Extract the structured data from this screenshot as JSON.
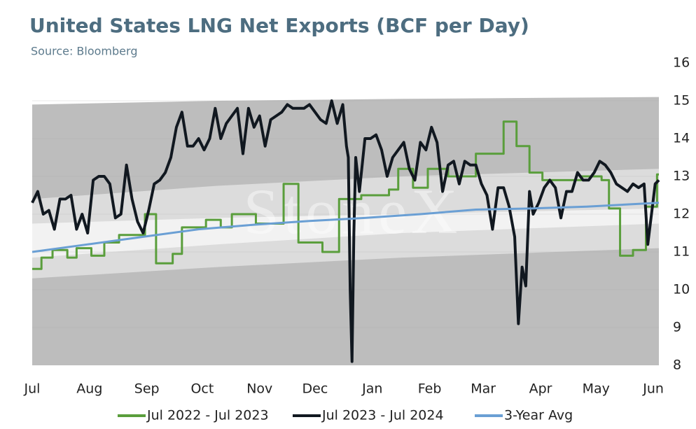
{
  "chart_data": {
    "type": "line",
    "title": "United States LNG Net Exports (BCF per Day)",
    "subtitle": "Source: Bloomberg",
    "watermark": "StoneX",
    "xlim": [
      0,
      339
    ],
    "xticks": [
      {
        "value": 0,
        "label": "Jul"
      },
      {
        "value": 31,
        "label": "Aug"
      },
      {
        "value": 62,
        "label": "Sep"
      },
      {
        "value": 92,
        "label": "Oct"
      },
      {
        "value": 123,
        "label": "Nov"
      },
      {
        "value": 153,
        "label": "Dec"
      },
      {
        "value": 184,
        "label": "Jan"
      },
      {
        "value": 215,
        "label": "Feb"
      },
      {
        "value": 244,
        "label": "Mar"
      },
      {
        "value": 275,
        "label": "Apr"
      },
      {
        "value": 305,
        "label": "May"
      },
      {
        "value": 336,
        "label": "Jun"
      }
    ],
    "ylim": [
      8,
      16
    ],
    "yticks": [
      8,
      9,
      10,
      11,
      12,
      13,
      14,
      15,
      16
    ],
    "y_axis_side": "right",
    "grid": true,
    "legend": "bottom",
    "bands": [
      {
        "color": "#bdbdbd",
        "x": [
          0,
          100,
          200,
          339
        ],
        "lower": [
          8,
          8,
          8,
          8
        ],
        "upper": [
          14.9,
          15.0,
          15.05,
          15.1
        ]
      },
      {
        "color": "#dcdcdc",
        "x": [
          0,
          100,
          200,
          339
        ],
        "lower": [
          10.3,
          10.6,
          10.85,
          11.1
        ],
        "upper": [
          12.4,
          12.75,
          13.0,
          13.2
        ]
      },
      {
        "color": "#f2f2f2",
        "x": [
          0,
          100,
          200,
          339
        ],
        "lower": [
          10.85,
          11.2,
          11.5,
          11.75
        ],
        "upper": [
          11.75,
          11.9,
          12.0,
          12.15
        ]
      }
    ],
    "series": [
      {
        "name": "Jul 2022 - Jul 2023",
        "color": "#5a9e3c",
        "x": [
          0,
          5,
          5,
          11,
          11,
          19,
          19,
          24,
          24,
          32,
          32,
          39,
          39,
          47,
          47,
          61,
          61,
          67,
          67,
          76,
          76,
          81,
          81,
          94,
          94,
          102,
          102,
          108,
          108,
          121,
          121,
          136,
          136,
          144,
          144,
          157,
          157,
          166,
          166,
          178,
          178,
          193,
          193,
          198,
          198,
          206,
          206,
          214,
          214,
          225,
          225,
          240,
          240,
          255,
          255,
          262,
          262,
          269,
          269,
          276,
          276,
          297,
          297,
          308,
          308,
          312,
          312,
          318,
          318,
          325,
          325,
          332,
          332,
          338,
          338,
          339
        ],
        "values": [
          10.55,
          10.55,
          10.85,
          10.85,
          11.05,
          11.05,
          10.85,
          10.85,
          11.1,
          11.1,
          10.9,
          10.9,
          11.25,
          11.25,
          11.45,
          11.45,
          12.0,
          12.0,
          10.7,
          10.7,
          10.95,
          10.95,
          11.65,
          11.65,
          11.85,
          11.85,
          11.65,
          11.65,
          12.0,
          12.0,
          11.75,
          11.75,
          12.8,
          12.8,
          11.25,
          11.25,
          11.0,
          11.0,
          12.4,
          12.4,
          12.5,
          12.5,
          12.65,
          12.65,
          13.2,
          13.2,
          12.7,
          12.7,
          13.2,
          13.2,
          13.0,
          13.0,
          13.6,
          13.6,
          14.45,
          14.45,
          13.8,
          13.8,
          13.1,
          13.1,
          12.9,
          12.9,
          13.0,
          13.0,
          12.9,
          12.9,
          12.15,
          12.15,
          10.9,
          10.9,
          11.05,
          11.05,
          12.2,
          12.2,
          13.05,
          13.05
        ]
      },
      {
        "name": "Jul 2023 - Jul 2024",
        "color": "#111820",
        "x": [
          0,
          3,
          6,
          9,
          12,
          15,
          18,
          21,
          24,
          27,
          30,
          33,
          36,
          39,
          42,
          45,
          48,
          51,
          54,
          57,
          60,
          63,
          66,
          69,
          72,
          75,
          78,
          81,
          84,
          87,
          90,
          93,
          96,
          99,
          102,
          105,
          108,
          111,
          114,
          117,
          120,
          123,
          126,
          129,
          132,
          135,
          138,
          141,
          144,
          147,
          150,
          153,
          156,
          159,
          162,
          165,
          168,
          170,
          171,
          172,
          173,
          174,
          175,
          177,
          180,
          183,
          186,
          189,
          192,
          195,
          198,
          201,
          204,
          207,
          210,
          213,
          216,
          219,
          222,
          225,
          228,
          231,
          234,
          237,
          240,
          243,
          246,
          249,
          252,
          255,
          258,
          261,
          263,
          265,
          267,
          269,
          271,
          274,
          277,
          280,
          283,
          286,
          289,
          292,
          295,
          298,
          301,
          304,
          307,
          310,
          313,
          316,
          319,
          322,
          325,
          328,
          331,
          333,
          335,
          337,
          339
        ],
        "values": [
          12.3,
          12.6,
          12.0,
          12.1,
          11.6,
          12.4,
          12.4,
          12.5,
          11.6,
          12.0,
          11.5,
          12.9,
          13.0,
          13.0,
          12.8,
          11.9,
          12.0,
          13.3,
          12.4,
          11.8,
          11.5,
          12.1,
          12.8,
          12.9,
          13.1,
          13.5,
          14.3,
          14.7,
          13.8,
          13.8,
          14.0,
          13.7,
          14.0,
          14.8,
          14.0,
          14.4,
          14.6,
          14.8,
          13.6,
          14.8,
          14.3,
          14.6,
          13.8,
          14.5,
          14.6,
          14.7,
          14.9,
          14.8,
          14.8,
          14.8,
          14.9,
          14.7,
          14.5,
          14.4,
          15.0,
          14.4,
          14.9,
          13.8,
          13.5,
          10.0,
          8.1,
          11.5,
          13.5,
          12.6,
          14.0,
          14.0,
          14.1,
          13.7,
          13.0,
          13.5,
          13.7,
          13.9,
          13.2,
          12.9,
          13.9,
          13.7,
          14.3,
          13.9,
          12.6,
          13.3,
          13.4,
          12.8,
          13.4,
          13.3,
          13.3,
          12.8,
          12.5,
          11.6,
          12.7,
          12.7,
          12.2,
          11.4,
          9.1,
          10.6,
          10.1,
          12.6,
          12.0,
          12.3,
          12.7,
          12.9,
          12.7,
          11.9,
          12.6,
          12.6,
          13.1,
          12.9,
          12.9,
          13.1,
          13.4,
          13.3,
          13.1,
          12.8,
          12.7,
          12.6,
          12.8,
          12.7,
          12.8,
          11.2,
          12.0,
          12.8,
          12.9
        ]
      },
      {
        "name": "3-Year Avg",
        "color": "#6a9fd4",
        "x": [
          0,
          30,
          60,
          90,
          120,
          150,
          180,
          210,
          240,
          270,
          300,
          339
        ],
        "values": [
          11.0,
          11.2,
          11.4,
          11.6,
          11.72,
          11.82,
          11.9,
          12.0,
          12.12,
          12.15,
          12.2,
          12.3
        ]
      }
    ]
  }
}
